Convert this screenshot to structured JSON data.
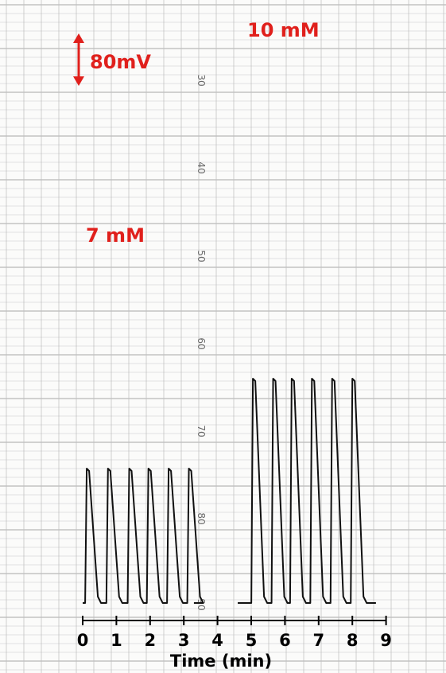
{
  "chart_data": {
    "type": "line",
    "title": "",
    "xlabel": "Time (min)",
    "ylabel": "",
    "xlim": [
      0,
      9
    ],
    "x_ticks": [
      0,
      1,
      2,
      3,
      4,
      5,
      6,
      7,
      8,
      9
    ],
    "paper_scale_labels": [
      "30",
      "40",
      "50",
      "60",
      "70",
      "80",
      "90"
    ],
    "scale_bar_label": "80mV",
    "series": [
      {
        "name": "7 mM",
        "spike_times": [
          0.12,
          0.75,
          1.38,
          1.95,
          2.55,
          3.15
        ],
        "amplitude": 169,
        "baseline_end": 3.3
      },
      {
        "name": "10 mM",
        "spike_times": [
          5.05,
          5.65,
          6.2,
          6.8,
          7.4,
          8.0
        ],
        "amplitude": 282,
        "baseline_start": 4.6,
        "baseline_end": 8.7
      }
    ],
    "colors": {
      "label": "#e0201c",
      "trace": "#111111",
      "grid": "#bdbdbd"
    },
    "grid": true
  }
}
